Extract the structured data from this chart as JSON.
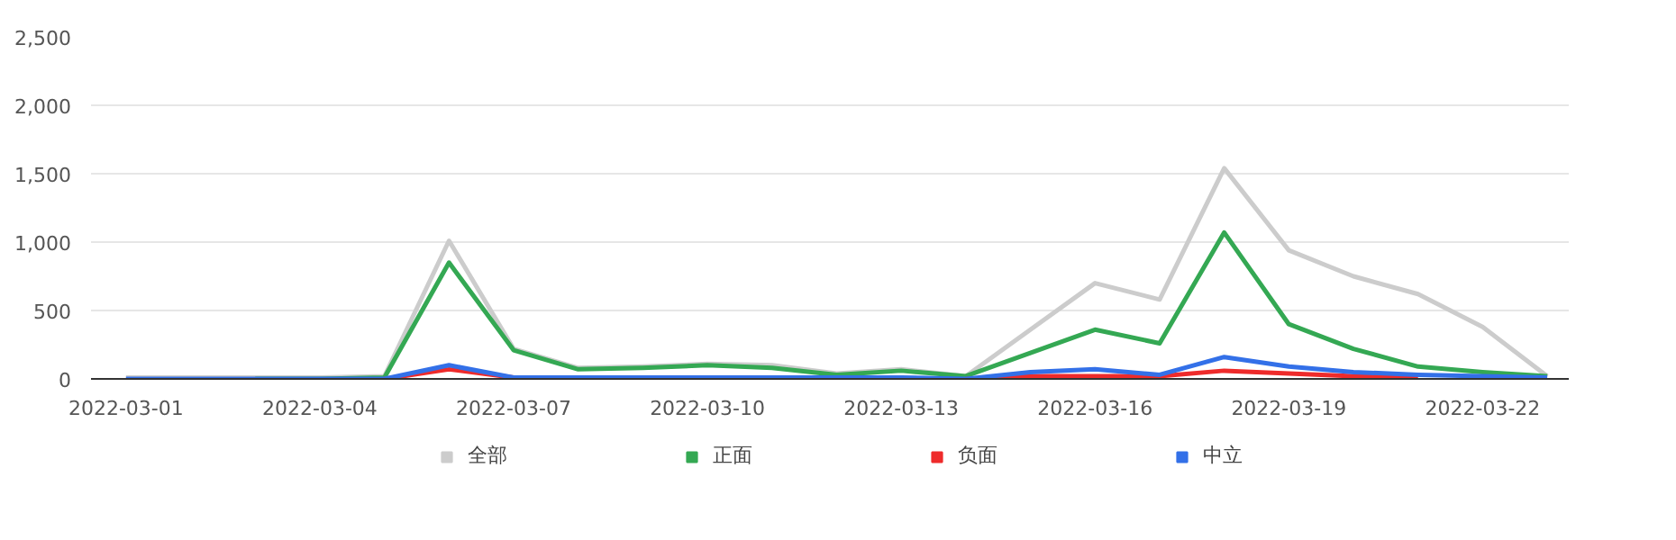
{
  "chart_data": {
    "type": "line",
    "x": [
      "2022-03-01",
      "2022-03-02",
      "2022-03-03",
      "2022-03-04",
      "2022-03-05",
      "2022-03-06",
      "2022-03-07",
      "2022-03-08",
      "2022-03-09",
      "2022-03-10",
      "2022-03-11",
      "2022-03-12",
      "2022-03-13",
      "2022-03-14",
      "2022-03-15",
      "2022-03-16",
      "2022-03-17",
      "2022-03-18",
      "2022-03-19",
      "2022-03-20",
      "2022-03-21",
      "2022-03-22",
      "2022-03-23"
    ],
    "series": [
      {
        "name": "全部",
        "color": "#cccccc",
        "values": [
          10,
          10,
          10,
          10,
          20,
          1010,
          220,
          80,
          90,
          110,
          100,
          40,
          70,
          20,
          360,
          700,
          580,
          1540,
          940,
          750,
          620,
          380,
          20
        ]
      },
      {
        "name": "正面",
        "color": "#34a853",
        "values": [
          null,
          null,
          0,
          0,
          10,
          850,
          210,
          70,
          80,
          100,
          80,
          30,
          60,
          20,
          190,
          360,
          260,
          1070,
          400,
          220,
          90,
          50,
          20
        ]
      },
      {
        "name": "负面",
        "color": "#ee2b2b",
        "values": [
          null,
          null,
          null,
          null,
          0,
          70,
          10,
          null,
          null,
          null,
          null,
          null,
          null,
          0,
          20,
          20,
          20,
          60,
          40,
          20,
          10,
          null,
          null
        ]
      },
      {
        "name": "中立",
        "color": "#3370e8",
        "values": [
          0,
          0,
          0,
          0,
          0,
          100,
          10,
          10,
          10,
          10,
          10,
          10,
          10,
          0,
          50,
          70,
          30,
          160,
          90,
          50,
          30,
          20,
          10
        ]
      }
    ],
    "xlim": [
      "2022-02-28T11:00",
      "2022-03-23T08:00"
    ],
    "xticks": [
      {
        "value": "2022-03-01",
        "label": "2022-03-01"
      },
      {
        "value": "2022-03-04",
        "label": "2022-03-04"
      },
      {
        "value": "2022-03-07",
        "label": "2022-03-07"
      },
      {
        "value": "2022-03-10",
        "label": "2022-03-10"
      },
      {
        "value": "2022-03-13",
        "label": "2022-03-13"
      },
      {
        "value": "2022-03-16",
        "label": "2022-03-16"
      },
      {
        "value": "2022-03-19",
        "label": "2022-03-19"
      },
      {
        "value": "2022-03-22",
        "label": "2022-03-22"
      }
    ],
    "ylim": [
      0,
      2500
    ],
    "yticks": [
      {
        "value": 0,
        "label": "0"
      },
      {
        "value": 500,
        "label": "500"
      },
      {
        "value": 1000,
        "label": "1,000"
      },
      {
        "value": 1500,
        "label": "1,500"
      },
      {
        "value": 2000,
        "label": "2,000"
      },
      {
        "value": 2500,
        "label": "2,500"
      }
    ],
    "grid": "y",
    "legend": "bottom",
    "marker": "none",
    "line_style": "solid"
  }
}
